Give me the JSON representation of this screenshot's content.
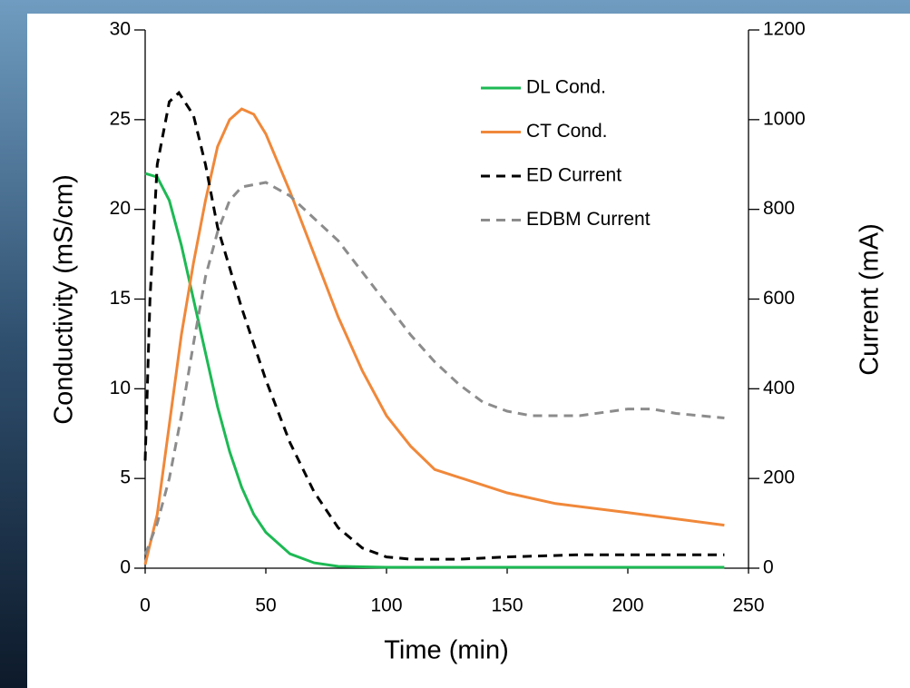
{
  "chart_data": {
    "type": "line",
    "x_label": "Time (min)",
    "y_label": "Conductivity (mS/cm)",
    "y2_label": "Current (mA)",
    "xlim": [
      0,
      250
    ],
    "xticks": [
      0,
      50,
      100,
      150,
      200,
      250
    ],
    "ylim": [
      0,
      30
    ],
    "yticks": [
      0,
      5,
      10,
      15,
      20,
      25,
      30
    ],
    "y2lim": [
      0,
      1200
    ],
    "y2ticks": [
      0,
      200,
      400,
      600,
      800,
      1000,
      1200
    ],
    "legend": "upper-right",
    "series": [
      {
        "name": "DL Cond.",
        "color": "#1db954",
        "dash": "solid",
        "axis": "y",
        "x": [
          0,
          5,
          10,
          15,
          20,
          25,
          30,
          35,
          40,
          45,
          50,
          60,
          70,
          80,
          100,
          150,
          200,
          240
        ],
        "values": [
          22,
          21.8,
          20.5,
          18,
          15,
          12,
          9,
          6.5,
          4.5,
          3,
          2,
          0.8,
          0.3,
          0.1,
          0.05,
          0.05,
          0.05,
          0.05
        ]
      },
      {
        "name": "CT Cond.",
        "color": "#f0883a",
        "dash": "solid",
        "axis": "y",
        "x": [
          0,
          5,
          10,
          15,
          20,
          25,
          30,
          35,
          40,
          45,
          50,
          60,
          70,
          80,
          90,
          100,
          110,
          120,
          150,
          170,
          200,
          240
        ],
        "values": [
          0.2,
          3,
          8,
          13,
          17,
          20.5,
          23.5,
          25,
          25.6,
          25.3,
          24.2,
          21,
          17.5,
          14,
          11,
          8.5,
          6.8,
          5.5,
          4.2,
          3.6,
          3.1,
          2.4
        ]
      },
      {
        "name": "ED Current",
        "color": "#000000",
        "dash": "dashed",
        "axis": "y2",
        "x": [
          0,
          2,
          5,
          10,
          14,
          20,
          25,
          30,
          40,
          50,
          60,
          70,
          80,
          90,
          100,
          110,
          130,
          150,
          180,
          200,
          240
        ],
        "values": [
          240,
          600,
          900,
          1040,
          1060,
          1010,
          900,
          760,
          580,
          420,
          280,
          170,
          90,
          45,
          25,
          20,
          20,
          25,
          30,
          30,
          30
        ]
      },
      {
        "name": "EDBM Current",
        "color": "#8c8c8c",
        "dash": "dashed",
        "axis": "y2",
        "x": [
          0,
          5,
          10,
          15,
          20,
          25,
          30,
          35,
          40,
          50,
          60,
          70,
          80,
          90,
          100,
          110,
          120,
          130,
          140,
          150,
          160,
          180,
          200,
          210,
          220,
          240
        ],
        "values": [
          30,
          100,
          200,
          340,
          500,
          650,
          750,
          820,
          850,
          860,
          830,
          780,
          730,
          660,
          590,
          520,
          460,
          410,
          370,
          350,
          340,
          340,
          355,
          355,
          345,
          335
        ]
      }
    ]
  }
}
